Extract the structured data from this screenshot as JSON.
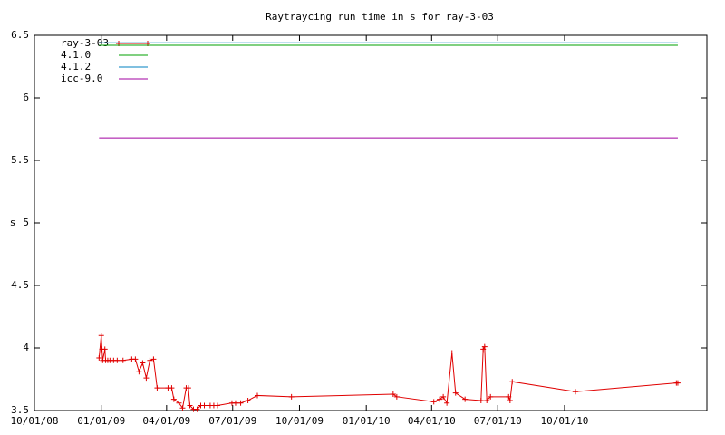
{
  "chart_data": {
    "type": "line",
    "title": "Raytraycing run time in s for ray-3-03",
    "y_label": "s",
    "xlim": [
      "2008-10-01",
      "2011-04-15"
    ],
    "xticks": [
      {
        "value": "2008-10-01",
        "label": "10/01/08"
      },
      {
        "value": "2009-01-01",
        "label": "01/01/09"
      },
      {
        "value": "2009-04-01",
        "label": "04/01/09"
      },
      {
        "value": "2009-07-01",
        "label": "07/01/09"
      },
      {
        "value": "2009-10-01",
        "label": "10/01/09"
      },
      {
        "value": "2010-01-01",
        "label": "01/01/10"
      },
      {
        "value": "2010-04-01",
        "label": "04/01/10"
      },
      {
        "value": "2010-07-01",
        "label": "07/01/10"
      },
      {
        "value": "2010-10-01",
        "label": "10/01/10"
      }
    ],
    "ylim": [
      3.5,
      6.5
    ],
    "yticks": [
      3.5,
      4,
      4.5,
      5,
      5.5,
      6,
      6.5
    ],
    "legend": "top-left",
    "series": [
      {
        "name": "ray-3-03",
        "color": "#e00000",
        "markers": true,
        "x": [
          "2008-12-29",
          "2009-01-01",
          "2009-01-02",
          "2009-01-03",
          "2009-01-06",
          "2009-01-07",
          "2009-01-10",
          "2009-01-13",
          "2009-01-18",
          "2009-01-23",
          "2009-01-31",
          "2009-02-12",
          "2009-02-17",
          "2009-02-22",
          "2009-02-27",
          "2009-03-04",
          "2009-03-09",
          "2009-03-14",
          "2009-03-19",
          "2009-04-03",
          "2009-04-08",
          "2009-04-11",
          "2009-04-18",
          "2009-04-23",
          "2009-04-28",
          "2009-05-01",
          "2009-05-03",
          "2009-05-08",
          "2009-05-13",
          "2009-05-18",
          "2009-05-23",
          "2009-05-31",
          "2009-06-05",
          "2009-06-10",
          "2009-06-30",
          "2009-07-05",
          "2009-07-12",
          "2009-07-22",
          "2009-08-04",
          "2009-09-20",
          "2010-02-07",
          "2010-02-12",
          "2010-04-04",
          "2010-04-12",
          "2010-04-17",
          "2010-04-22",
          "2010-04-29",
          "2010-05-04",
          "2010-05-17",
          "2010-06-08",
          "2010-06-11",
          "2010-06-13",
          "2010-06-16",
          "2010-06-21",
          "2010-07-16",
          "2010-07-18",
          "2010-07-21",
          "2010-10-16",
          "2011-03-04",
          "2011-03-06"
        ],
        "values": [
          3.92,
          4.1,
          3.99,
          3.9,
          3.99,
          3.9,
          3.9,
          3.9,
          3.9,
          3.9,
          3.9,
          3.91,
          3.91,
          3.81,
          3.88,
          3.76,
          3.9,
          3.91,
          3.68,
          3.68,
          3.68,
          3.59,
          3.56,
          3.52,
          3.68,
          3.68,
          3.54,
          3.51,
          3.51,
          3.54,
          3.54,
          3.54,
          3.54,
          3.54,
          3.56,
          3.56,
          3.56,
          3.58,
          3.62,
          3.61,
          3.63,
          3.61,
          3.57,
          3.59,
          3.61,
          3.56,
          3.96,
          3.64,
          3.59,
          3.58,
          3.99,
          4.01,
          3.58,
          3.61,
          3.61,
          3.58,
          3.73,
          3.65,
          3.72,
          3.72
        ]
      },
      {
        "name": "4.1.0",
        "color": "#00a000",
        "markers": false,
        "x": [
          "2008-12-29",
          "2011-03-06"
        ],
        "values": [
          6.42,
          6.42
        ]
      },
      {
        "name": "4.1.2",
        "color": "#0080c0",
        "markers": false,
        "x": [
          "2008-12-29",
          "2011-03-06"
        ],
        "values": [
          6.44,
          6.44
        ]
      },
      {
        "name": "icc-9.0",
        "color": "#a000a0",
        "markers": false,
        "x": [
          "2008-12-29",
          "2011-03-06"
        ],
        "values": [
          5.68,
          5.68
        ]
      }
    ]
  }
}
